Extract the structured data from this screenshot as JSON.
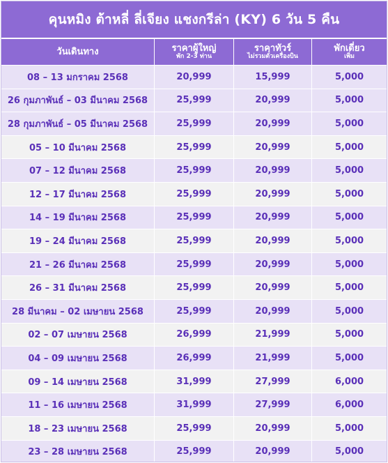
{
  "title": "คุนหมิง ต้าหลี่ ลี่เจียง แชงกรีล่า (KY) 6 วัน 5 คืน",
  "header": {
    "date": "วันเดินทาง",
    "adult": "ราคาผู้ใหญ่",
    "adult_sub": "พัก 2-3 ท่าน",
    "tour": "ราคาทัวร์",
    "tour_sub": "ไม่รวมตั๋วเครื่องบิน",
    "single": "พักเดี่ยว",
    "single_sub": "เพิ่ม"
  },
  "rows": [
    {
      "date": "08 – 13 มกราคม 2568",
      "adult": "20,999",
      "tour": "15,999",
      "single": "5,000"
    },
    {
      "date": "26 กุมภาพันธ์ – 03 มีนาคม 2568",
      "adult": "25,999",
      "tour": "20,999",
      "single": "5,000"
    },
    {
      "date": "28 กุมภาพันธ์ – 05 มีนาคม 2568",
      "adult": "25,999",
      "tour": "20,999",
      "single": "5,000"
    },
    {
      "date": "05 – 10 มีนาคม 2568",
      "adult": "25,999",
      "tour": "20,999",
      "single": "5,000"
    },
    {
      "date": "07 – 12 มีนาคม 2568",
      "adult": "25,999",
      "tour": "20,999",
      "single": "5,000"
    },
    {
      "date": "12 – 17 มีนาคม 2568",
      "adult": "25,999",
      "tour": "20,999",
      "single": "5,000"
    },
    {
      "date": "14 – 19 มีนาคม 2568",
      "adult": "25,999",
      "tour": "20,999",
      "single": "5,000"
    },
    {
      "date": "19 – 24 มีนาคม 2568",
      "adult": "25,999",
      "tour": "20,999",
      "single": "5,000"
    },
    {
      "date": "21 – 26 มีนาคม 2568",
      "adult": "25,999",
      "tour": "20,999",
      "single": "5,000"
    },
    {
      "date": "26 – 31 มีนาคม 2568",
      "adult": "25,999",
      "tour": "20,999",
      "single": "5,000"
    },
    {
      "date": "28 มีนาคม – 02 เมษายน 2568",
      "adult": "25,999",
      "tour": "20,999",
      "single": "5,000"
    },
    {
      "date": "02 – 07 เมษายน 2568",
      "adult": "26,999",
      "tour": "21,999",
      "single": "5,000"
    },
    {
      "date": "04 – 09 เมษายน 2568",
      "adult": "26,999",
      "tour": "21,999",
      "single": "5,000"
    },
    {
      "date": "09 – 14 เมษายน 2568",
      "adult": "31,999",
      "tour": "27,999",
      "single": "6,000"
    },
    {
      "date": "11 – 16 เมษายน 2568",
      "adult": "31,999",
      "tour": "27,999",
      "single": "6,000"
    },
    {
      "date": "18 – 23 เมษายน 2568",
      "adult": "25,999",
      "tour": "20,999",
      "single": "5,000"
    },
    {
      "date": "23 – 28 เมษายน 2568",
      "adult": "25,999",
      "tour": "20,999",
      "single": "5,000"
    }
  ],
  "colors": {
    "header_bg": "#8d6ad4",
    "text": "#5a30b8",
    "row_alt": "#e8e1f6",
    "row_plain": "#f2f2f2"
  }
}
